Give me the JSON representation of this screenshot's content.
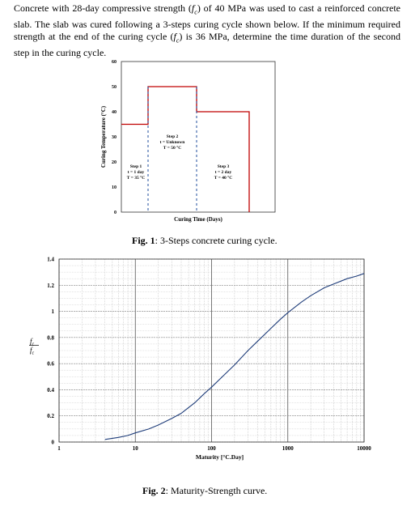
{
  "problem": {
    "part1": "Concrete with 28-day compressive strength (",
    "fc_symbol": "f",
    "fc_sub": "c",
    "part2": ") of 40 MPa was used to cast a reinforced concrete slab. The slab was cured following a 3-steps curing cycle shown below. If the minimum required strength at the end of the curing cycle (",
    "part3": ") is 36 MPa, determine the time duration of the second step in the curing cycle."
  },
  "figure1": {
    "caption_label": "Fig. 1",
    "caption_text": ": 3-Steps concrete curing cycle.",
    "chart_data": {
      "type": "line",
      "ylabel": "Curing Temperature (°C)",
      "xlabel": "Curing Time (Days)",
      "ylim": [
        0,
        60
      ],
      "yticks": [
        "0",
        "10",
        "20",
        "30",
        "40",
        "50",
        "60"
      ],
      "grid": false,
      "series_color": "#c00000",
      "steps": [
        {
          "name": "Step 1",
          "duration": "t = 1 day",
          "temp": "T = 35 °C",
          "temp_value": 35
        },
        {
          "name": "Step 2",
          "duration": "t = Unknown",
          "temp": "T = 50 °C",
          "temp_value": 50
        },
        {
          "name": "Step 3",
          "duration": "t = 2 day",
          "temp": "T = 40 °C",
          "temp_value": 40
        }
      ]
    }
  },
  "figure2": {
    "caption_label": "Fig. 2",
    "caption_text": ": Maturity-Strength curve.",
    "chart_data": {
      "type": "line",
      "xscale": "log",
      "xlabel": "Maturity [°C.Day]",
      "ylabel_num": "f",
      "ylabel_den": "f",
      "ylabel_sub": "c",
      "xlim": [
        1,
        10000
      ],
      "ylim": [
        0,
        1.4
      ],
      "xticks": [
        {
          "value": 1,
          "label": "1"
        },
        {
          "value": 10,
          "label": "10"
        },
        {
          "value": 100,
          "label": "100"
        },
        {
          "value": 1000,
          "label": "1000"
        },
        {
          "value": 10000,
          "label": "10000"
        }
      ],
      "yticks": [
        "0",
        "0.2",
        "0.4",
        "0.6",
        "0.8",
        "1",
        "1.2",
        "1.4"
      ],
      "grid": true,
      "series_color": "#1f3d7a",
      "x": [
        4,
        6,
        8,
        10,
        15,
        20,
        30,
        40,
        60,
        80,
        100,
        150,
        200,
        300,
        400,
        600,
        800,
        1000,
        1500,
        2000,
        3000,
        4000,
        6000,
        8000,
        10000
      ],
      "y": [
        0.02,
        0.035,
        0.05,
        0.07,
        0.1,
        0.13,
        0.18,
        0.22,
        0.3,
        0.37,
        0.42,
        0.52,
        0.59,
        0.7,
        0.77,
        0.87,
        0.94,
        0.99,
        1.07,
        1.12,
        1.18,
        1.21,
        1.25,
        1.27,
        1.29
      ]
    }
  }
}
